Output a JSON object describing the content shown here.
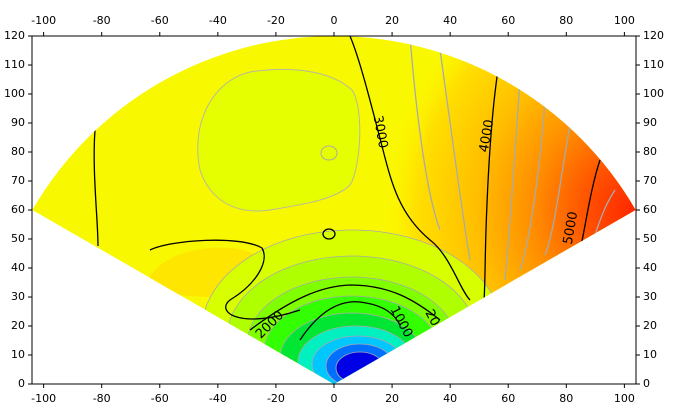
{
  "chart_data": {
    "type": "contour",
    "xlim": [
      -104,
      104
    ],
    "ylim": [
      0,
      120
    ],
    "xticks": [
      -100,
      -80,
      -60,
      -40,
      -20,
      0,
      20,
      40,
      60,
      80,
      100
    ],
    "yticks": [
      0,
      10,
      20,
      30,
      40,
      50,
      60,
      70,
      80,
      90,
      100,
      110,
      120
    ],
    "grid": false,
    "annotations": [
      "3000",
      "4000",
      "5000",
      "2000",
      "1000",
      "20"
    ]
  }
}
